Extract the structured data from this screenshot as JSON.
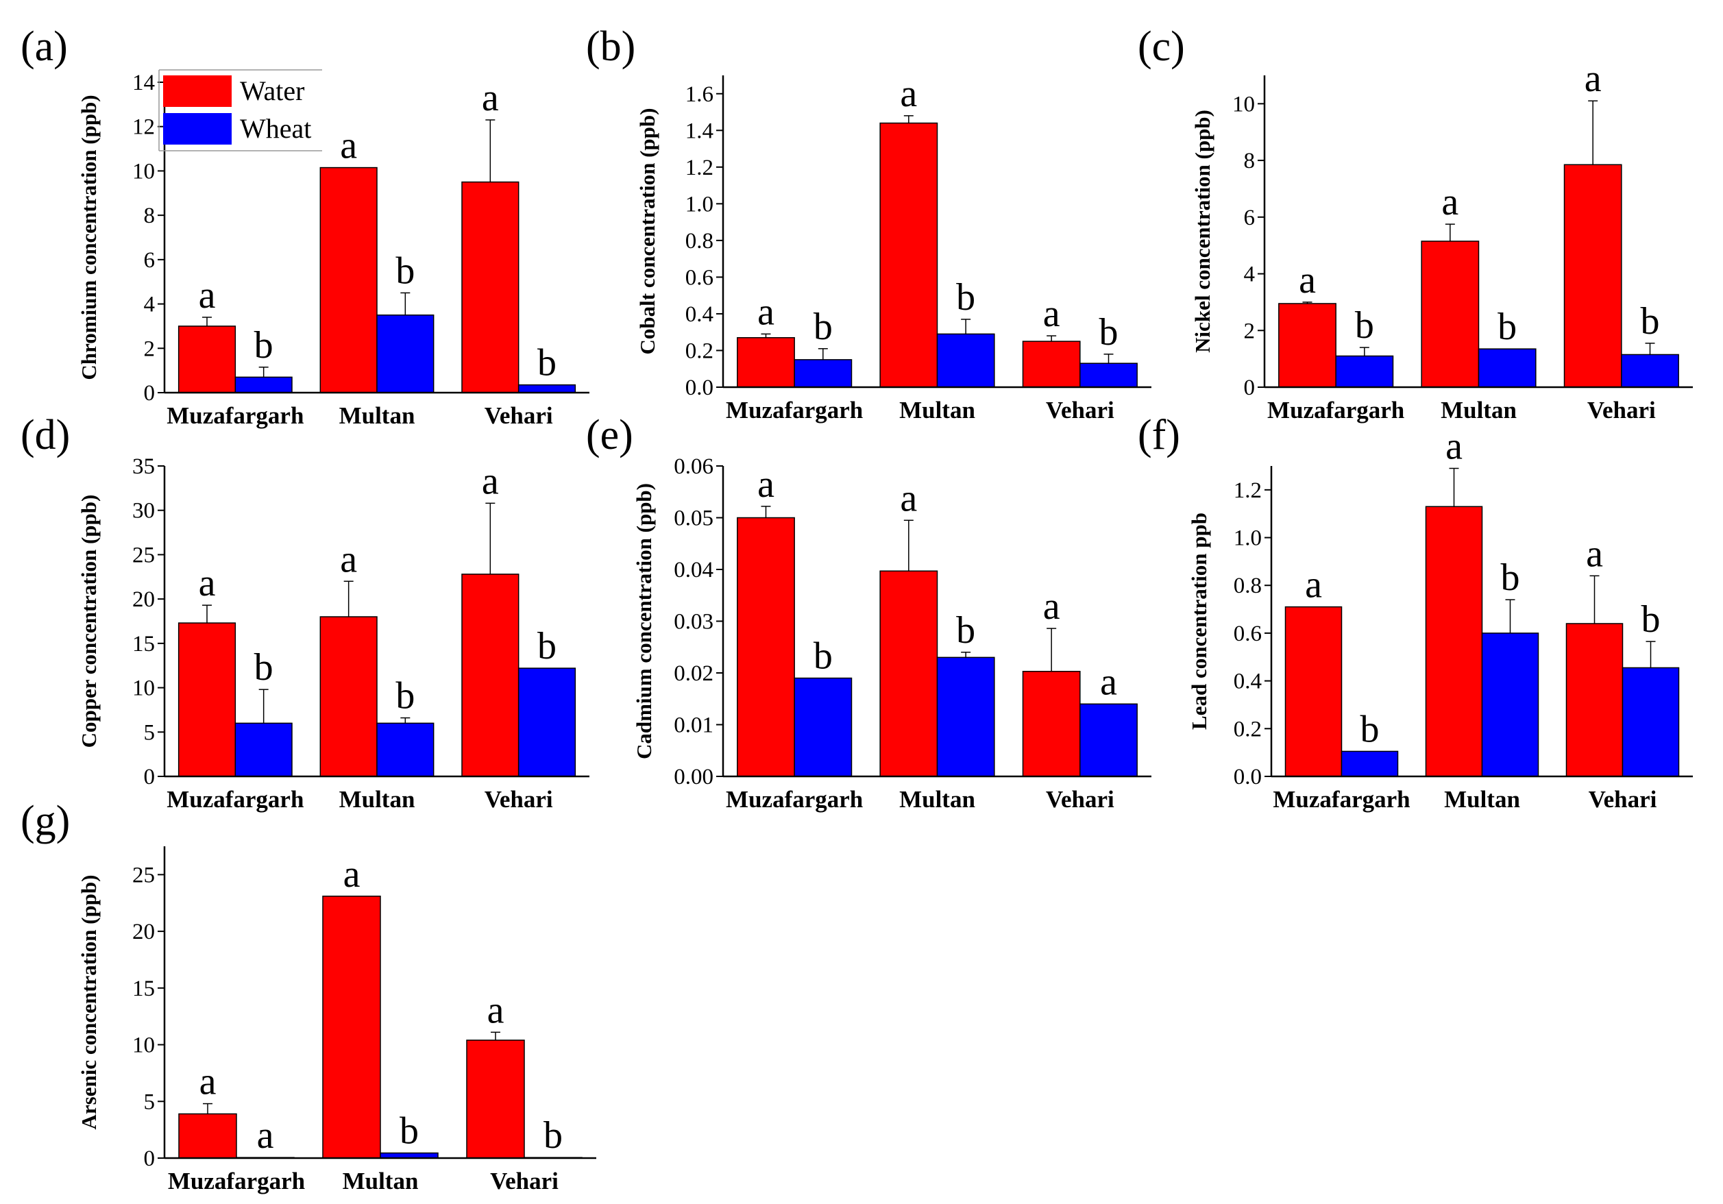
{
  "legend": {
    "items": [
      {
        "name": "Water",
        "color": "#ff0000"
      },
      {
        "name": "Wheat",
        "color": "#0000ff"
      }
    ]
  },
  "chart_data": [
    {
      "panel": "(a)",
      "type": "bar",
      "categories": [
        "Muzafargarh",
        "Multan",
        "Vehari"
      ],
      "ylabel": "Chromium concentration (ppb)",
      "ylim": [
        0,
        14
      ],
      "yticks": [
        0,
        2,
        4,
        6,
        8,
        10,
        12,
        14
      ],
      "tick_decimals": 0,
      "series": [
        {
          "name": "Water",
          "values": [
            3.0,
            10.15,
            9.5
          ],
          "errors": [
            0.4,
            0,
            2.8
          ],
          "sig": [
            "a",
            "a",
            "a"
          ]
        },
        {
          "name": "Wheat",
          "values": [
            0.7,
            3.5,
            0.35
          ],
          "errors": [
            0.45,
            1.0,
            0
          ],
          "sig": [
            "b",
            "b",
            "b"
          ]
        }
      ]
    },
    {
      "panel": "(b)",
      "type": "bar",
      "categories": [
        "Muzafargarh",
        "Multan",
        "Vehari"
      ],
      "ylabel": "Cobalt concentration (ppb)",
      "ylim": [
        0,
        1.7
      ],
      "yticks": [
        0.0,
        0.2,
        0.4,
        0.6,
        0.8,
        1.0,
        1.2,
        1.4,
        1.6
      ],
      "tick_decimals": 1,
      "series": [
        {
          "name": "Water",
          "values": [
            0.27,
            1.44,
            0.25
          ],
          "errors": [
            0.02,
            0.04,
            0.03
          ],
          "sig": [
            "a",
            "a",
            "a"
          ]
        },
        {
          "name": "Wheat",
          "values": [
            0.15,
            0.29,
            0.13
          ],
          "errors": [
            0.06,
            0.08,
            0.05
          ],
          "sig": [
            "b",
            "b",
            "b"
          ]
        }
      ]
    },
    {
      "panel": "(c)",
      "type": "bar",
      "categories": [
        "Muzafargarh",
        "Multan",
        "Vehari"
      ],
      "ylabel": "Nickel concentration (ppb)",
      "ylim": [
        0,
        11
      ],
      "yticks": [
        0,
        2,
        4,
        6,
        8,
        10
      ],
      "tick_decimals": 0,
      "series": [
        {
          "name": "Water",
          "values": [
            2.95,
            5.15,
            7.85
          ],
          "errors": [
            0.05,
            0.6,
            2.25
          ],
          "sig": [
            "a",
            "a",
            "a"
          ]
        },
        {
          "name": "Wheat",
          "values": [
            1.1,
            1.35,
            1.15
          ],
          "errors": [
            0.3,
            0,
            0.4
          ],
          "sig": [
            "b",
            "b",
            "b"
          ]
        }
      ]
    },
    {
      "panel": "(d)",
      "type": "bar",
      "categories": [
        "Muzafargarh",
        "Multan",
        "Vehari"
      ],
      "ylabel": "Copper concentration (ppb)",
      "ylim": [
        0,
        35
      ],
      "yticks": [
        0,
        5,
        10,
        15,
        20,
        25,
        30,
        35
      ],
      "tick_decimals": 0,
      "series": [
        {
          "name": "Water",
          "values": [
            17.3,
            18.0,
            22.8
          ],
          "errors": [
            2.0,
            4.0,
            8.0
          ],
          "sig": [
            "a",
            "a",
            "a"
          ]
        },
        {
          "name": "Wheat",
          "values": [
            6.0,
            6.0,
            12.2
          ],
          "errors": [
            3.8,
            0.6,
            0
          ],
          "sig": [
            "b",
            "b",
            "b"
          ]
        }
      ]
    },
    {
      "panel": "(e)",
      "type": "bar",
      "categories": [
        "Muzafargarh",
        "Multan",
        "Vehari"
      ],
      "ylabel": "Cadmium concentration (ppb)",
      "ylim": [
        0,
        0.06
      ],
      "yticks": [
        0.0,
        0.01,
        0.02,
        0.03,
        0.04,
        0.05,
        0.06
      ],
      "tick_decimals": 2,
      "series": [
        {
          "name": "Water",
          "values": [
            0.05,
            0.0397,
            0.0203
          ],
          "errors": [
            0.0022,
            0.0098,
            0.0083
          ],
          "sig": [
            "a",
            "a",
            "a"
          ]
        },
        {
          "name": "Wheat",
          "values": [
            0.019,
            0.023,
            0.014
          ],
          "errors": [
            0,
            0.001,
            0
          ],
          "sig": [
            "b",
            "b",
            "a"
          ]
        }
      ]
    },
    {
      "panel": "(f)",
      "type": "bar",
      "categories": [
        "Muzafargarh",
        "Multan",
        "Vehari"
      ],
      "ylabel": "Lead concentration ppb",
      "ylim": [
        0,
        1.3
      ],
      "yticks": [
        0.0,
        0.2,
        0.4,
        0.6,
        0.8,
        1.0,
        1.2
      ],
      "tick_decimals": 1,
      "series": [
        {
          "name": "Water",
          "values": [
            0.71,
            1.13,
            0.64
          ],
          "errors": [
            0,
            0.16,
            0.2
          ],
          "sig": [
            "a",
            "a",
            "a"
          ]
        },
        {
          "name": "Wheat",
          "values": [
            0.105,
            0.6,
            0.455
          ],
          "errors": [
            0,
            0.14,
            0.11
          ],
          "sig": [
            "b",
            "b",
            "b"
          ]
        }
      ]
    },
    {
      "panel": "(g)",
      "type": "bar",
      "categories": [
        "Muzafargarh",
        "Multan",
        "Vehari"
      ],
      "ylabel": "Arsenic concentration (ppb)",
      "ylim": [
        0,
        27.5
      ],
      "yticks": [
        0,
        5,
        10,
        15,
        20,
        25
      ],
      "tick_decimals": 0,
      "series": [
        {
          "name": "Water",
          "values": [
            3.9,
            23.1,
            10.4
          ],
          "errors": [
            0.9,
            0,
            0.7
          ],
          "sig": [
            "a",
            "a",
            "a"
          ]
        },
        {
          "name": "Wheat",
          "values": [
            0.05,
            0.45,
            0.05
          ],
          "errors": [
            0,
            0,
            0
          ],
          "sig": [
            "a",
            "b",
            "b"
          ]
        }
      ]
    }
  ]
}
